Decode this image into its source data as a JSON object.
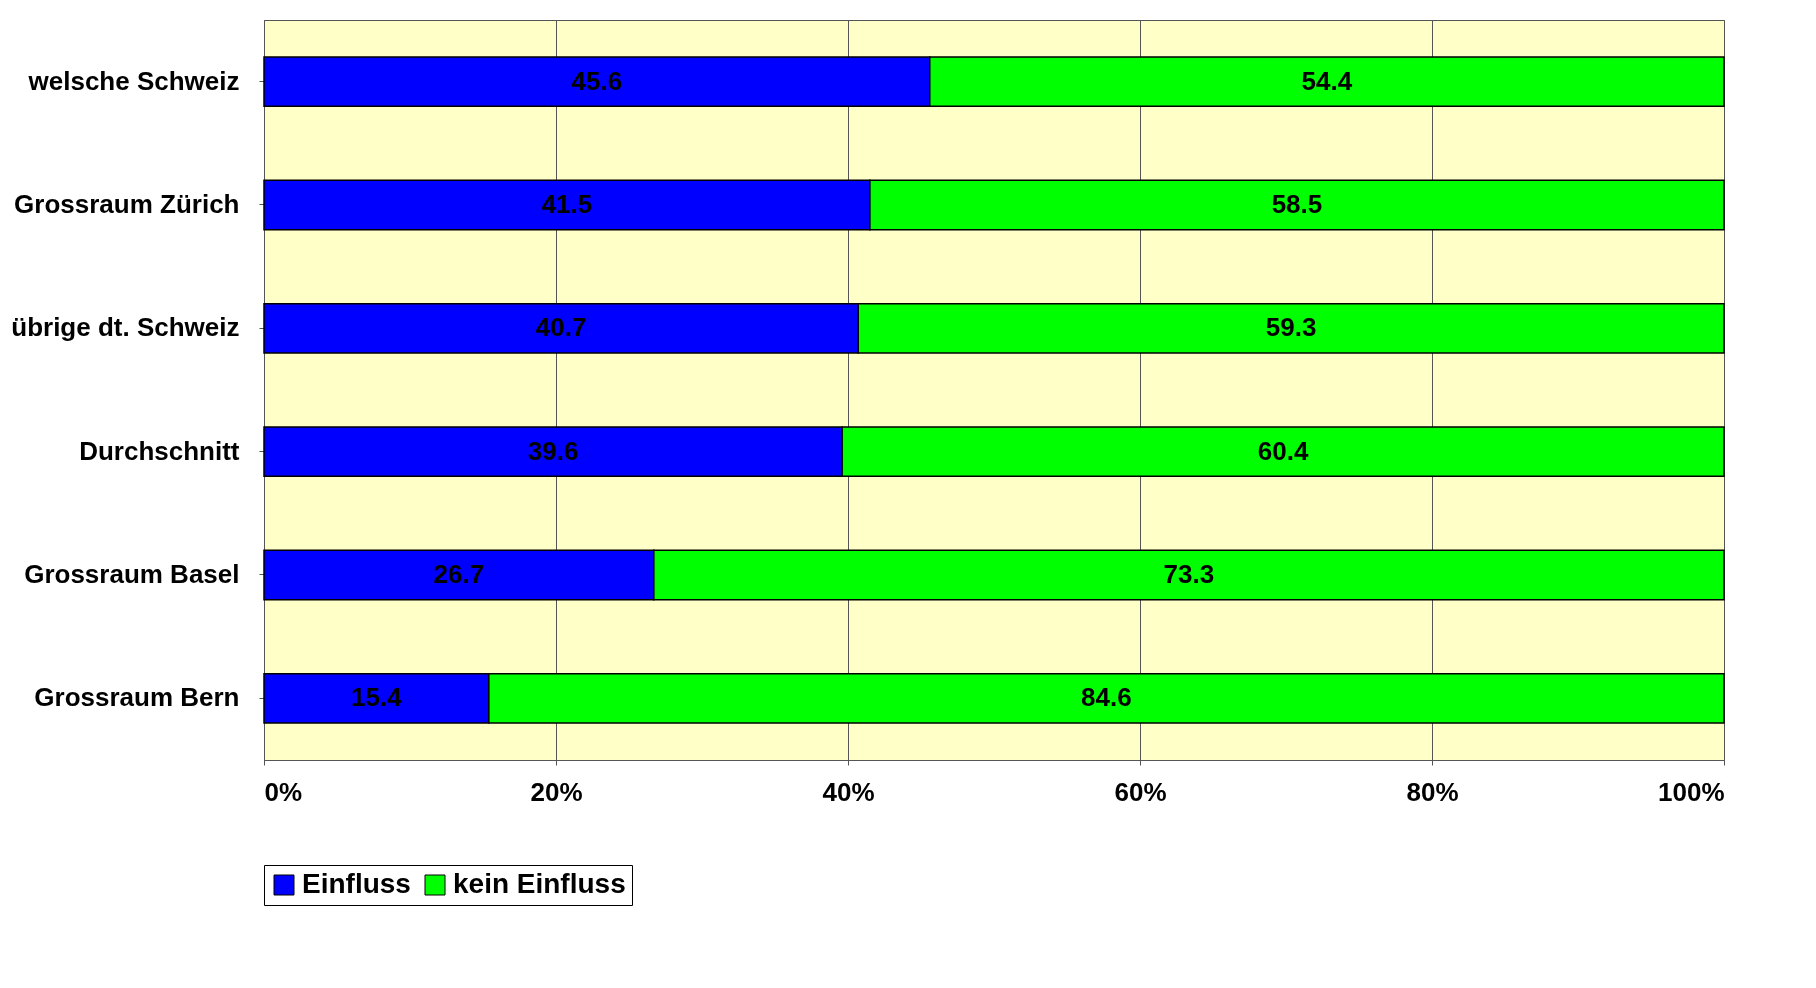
{
  "chart_data": {
    "type": "bar",
    "orientation": "horizontal",
    "stacked": true,
    "data_labels": true,
    "grid": "x",
    "legend": "bottom",
    "categories": [
      "welsche Schweiz",
      "Grossraum Zürich",
      "übrige dt. Schweiz",
      "Durchschnitt",
      "Grossraum Basel",
      "Grossraum Bern"
    ],
    "series": [
      {
        "name": "Einfluss",
        "color": "#0000ff",
        "values": [
          45.6,
          41.5,
          40.7,
          39.6,
          26.7,
          15.4
        ]
      },
      {
        "name": "kein Einfluss",
        "color": "#00ff00",
        "values": [
          54.4,
          58.5,
          59.3,
          60.4,
          73.3,
          84.6
        ]
      }
    ],
    "xlim": [
      0,
      100
    ],
    "xticks": [
      {
        "value": 0,
        "label": "0%"
      },
      {
        "value": 20,
        "label": "20%"
      },
      {
        "value": 40,
        "label": "40%"
      },
      {
        "value": 60,
        "label": "60%"
      },
      {
        "value": 80,
        "label": "80%"
      },
      {
        "value": 100,
        "label": "100%"
      }
    ]
  }
}
